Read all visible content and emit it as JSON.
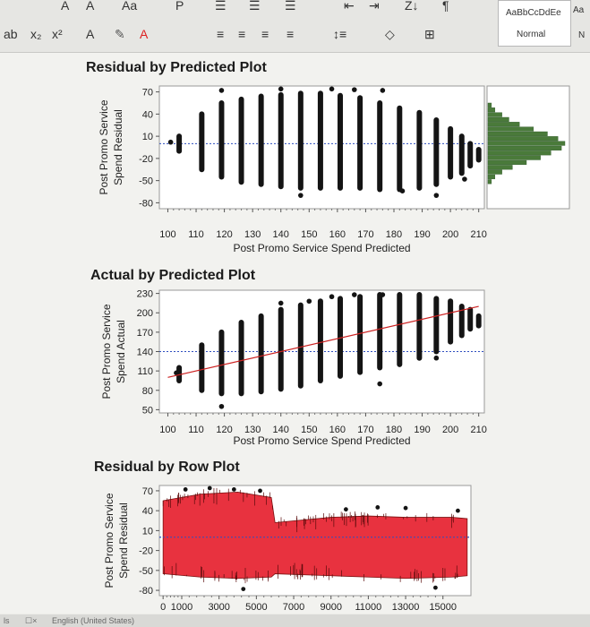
{
  "toolbar": {
    "row1": [
      "A",
      "A",
      "Aa",
      "P",
      "☰",
      "☰",
      "☰",
      "⇤",
      "⇥",
      "Z↓",
      "¶"
    ],
    "row2": [
      "ab",
      "x₂",
      "x²",
      "A",
      "✎",
      "A",
      "≡",
      "≡",
      "≡",
      "≡",
      "↕≡",
      "◇",
      "⊞"
    ],
    "style_sample": "AaBbCcDdEe",
    "style_name": "Normal",
    "style2": "Aa",
    "style3": "N"
  },
  "status": {
    "left": "ls",
    "lang_icon": "☐×",
    "language": "English (United States)"
  },
  "colors": {
    "points": "#141414",
    "fit_line": "#cc2222",
    "ref_line": "#2f4fbf",
    "histogram": "#4a7a3a",
    "row_fill": "#e8323f"
  },
  "chart_data": [
    {
      "type": "scatter",
      "title": "Residual by Predicted Plot",
      "xlabel": "Post Promo Service Spend Predicted",
      "ylabel": "Post Promo Service Spend Residual",
      "x_ticks": [
        100,
        110,
        120,
        130,
        140,
        150,
        160,
        170,
        180,
        190,
        200,
        210
      ],
      "y_ticks": [
        70,
        40,
        10,
        -20,
        -50,
        -80
      ],
      "xlim": [
        97,
        212
      ],
      "ylim": [
        -88,
        78
      ],
      "reference_line_y": 0,
      "marginal_histogram": true,
      "columns": [
        {
          "x": 104,
          "ymin": -10,
          "ymax": 10
        },
        {
          "x": 112,
          "ymin": -35,
          "ymax": 40
        },
        {
          "x": 119,
          "ymin": -45,
          "ymax": 55
        },
        {
          "x": 126,
          "ymin": -52,
          "ymax": 60
        },
        {
          "x": 133,
          "ymin": -55,
          "ymax": 64
        },
        {
          "x": 140,
          "ymin": -58,
          "ymax": 66
        },
        {
          "x": 147,
          "ymin": -60,
          "ymax": 68
        },
        {
          "x": 154,
          "ymin": -60,
          "ymax": 68
        },
        {
          "x": 161,
          "ymin": -60,
          "ymax": 65
        },
        {
          "x": 168,
          "ymin": -60,
          "ymax": 62
        },
        {
          "x": 175,
          "ymin": -62,
          "ymax": 55
        },
        {
          "x": 182,
          "ymin": -62,
          "ymax": 48
        },
        {
          "x": 189,
          "ymin": -60,
          "ymax": 42
        },
        {
          "x": 195,
          "ymin": -55,
          "ymax": 32
        },
        {
          "x": 200,
          "ymin": -45,
          "ymax": 20
        },
        {
          "x": 204,
          "ymin": -40,
          "ymax": 10
        },
        {
          "x": 207,
          "ymin": -30,
          "ymax": 0
        },
        {
          "x": 210,
          "ymin": -22,
          "ymax": -8
        }
      ],
      "points": [
        {
          "x": 101,
          "y": 2
        },
        {
          "x": 119,
          "y": 72
        },
        {
          "x": 140,
          "y": 74
        },
        {
          "x": 158,
          "y": 74
        },
        {
          "x": 166,
          "y": 73
        },
        {
          "x": 176,
          "y": 72
        },
        {
          "x": 147,
          "y": -70
        },
        {
          "x": 183,
          "y": -64
        },
        {
          "x": 195,
          "y": -70
        },
        {
          "x": 205,
          "y": -48
        },
        {
          "x": 207,
          "y": -5
        }
      ],
      "histogram": [
        1,
        2,
        4,
        6,
        9,
        13,
        17,
        20,
        22,
        21,
        18,
        15,
        11,
        7,
        4,
        2,
        1
      ]
    },
    {
      "type": "scatter",
      "title": "Actual by Predicted Plot",
      "xlabel": "Post Promo Service Spend Predicted",
      "ylabel": "Post Promo Service Spend Actual",
      "x_ticks": [
        100,
        110,
        120,
        130,
        140,
        150,
        160,
        170,
        180,
        190,
        200,
        210
      ],
      "y_ticks": [
        230,
        200,
        170,
        140,
        110,
        80,
        50
      ],
      "xlim": [
        97,
        212
      ],
      "ylim": [
        45,
        235
      ],
      "reference_line_y": 140,
      "fit_line": {
        "x1": 100,
        "y1": 100,
        "x2": 210,
        "y2": 210
      },
      "columns": [
        {
          "x": 104,
          "ymin": 95,
          "ymax": 115
        },
        {
          "x": 112,
          "ymin": 80,
          "ymax": 150
        },
        {
          "x": 119,
          "ymin": 75,
          "ymax": 170
        },
        {
          "x": 126,
          "ymin": 75,
          "ymax": 185
        },
        {
          "x": 133,
          "ymin": 78,
          "ymax": 195
        },
        {
          "x": 140,
          "ymin": 82,
          "ymax": 205
        },
        {
          "x": 147,
          "ymin": 87,
          "ymax": 212
        },
        {
          "x": 154,
          "ymin": 95,
          "ymax": 218
        },
        {
          "x": 161,
          "ymin": 102,
          "ymax": 222
        },
        {
          "x": 168,
          "ymin": 108,
          "ymax": 225
        },
        {
          "x": 175,
          "ymin": 115,
          "ymax": 228
        },
        {
          "x": 182,
          "ymin": 120,
          "ymax": 228
        },
        {
          "x": 189,
          "ymin": 130,
          "ymax": 228
        },
        {
          "x": 195,
          "ymin": 140,
          "ymax": 222
        },
        {
          "x": 200,
          "ymin": 155,
          "ymax": 218
        },
        {
          "x": 204,
          "ymin": 165,
          "ymax": 210
        },
        {
          "x": 207,
          "ymin": 175,
          "ymax": 205
        },
        {
          "x": 210,
          "ymin": 180,
          "ymax": 195
        }
      ],
      "points": [
        {
          "x": 103,
          "y": 107
        },
        {
          "x": 119,
          "y": 55
        },
        {
          "x": 140,
          "y": 215
        },
        {
          "x": 150,
          "y": 218
        },
        {
          "x": 158,
          "y": 225
        },
        {
          "x": 166,
          "y": 228
        },
        {
          "x": 176,
          "y": 228
        },
        {
          "x": 175,
          "y": 90
        },
        {
          "x": 195,
          "y": 130
        },
        {
          "x": 207,
          "y": 190
        }
      ]
    },
    {
      "type": "area",
      "title": "Residual by Row Plot",
      "xlabel": "",
      "ylabel": "Post Promo Service Spend Residual",
      "x_ticks": [
        0,
        1000,
        3000,
        5000,
        7000,
        9000,
        11000,
        13000,
        15000
      ],
      "y_ticks": [
        70,
        40,
        10,
        -20,
        -50,
        -80
      ],
      "xlim": [
        -200,
        16500
      ],
      "ylim": [
        -88,
        78
      ],
      "reference_line_y": 0,
      "envelope": [
        {
          "x": 0,
          "low": -55,
          "high": 55
        },
        {
          "x": 2000,
          "low": -60,
          "high": 65
        },
        {
          "x": 4000,
          "low": -62,
          "high": 68
        },
        {
          "x": 5800,
          "low": -60,
          "high": 60
        },
        {
          "x": 6000,
          "low": -55,
          "high": 22
        },
        {
          "x": 9000,
          "low": -58,
          "high": 30
        },
        {
          "x": 11000,
          "low": -60,
          "high": 32
        },
        {
          "x": 13000,
          "low": -62,
          "high": 30
        },
        {
          "x": 15500,
          "low": -60,
          "high": 30
        },
        {
          "x": 16300,
          "low": -58,
          "high": 28
        }
      ],
      "outliers": [
        {
          "x": 1200,
          "y": 72
        },
        {
          "x": 2500,
          "y": 74
        },
        {
          "x": 3800,
          "y": 72
        },
        {
          "x": 4300,
          "y": -78
        },
        {
          "x": 5200,
          "y": 70
        },
        {
          "x": 9800,
          "y": 42
        },
        {
          "x": 11500,
          "y": 45
        },
        {
          "x": 13000,
          "y": 44
        },
        {
          "x": 14600,
          "y": -76
        },
        {
          "x": 15800,
          "y": 40
        }
      ]
    }
  ]
}
